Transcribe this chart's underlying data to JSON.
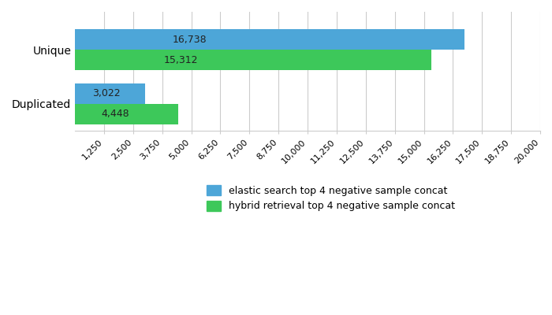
{
  "categories": [
    "Unique",
    "Duplicated"
  ],
  "series": [
    {
      "label": "elastic search top 4 negative sample concat",
      "values": [
        16738,
        3022
      ],
      "color": "#4da6d8"
    },
    {
      "label": "hybrid retrieval top 4 negative sample concat",
      "values": [
        15312,
        4448
      ],
      "color": "#3dc85a"
    }
  ],
  "xlim": [
    0,
    20000
  ],
  "xticks": [
    1250,
    2500,
    3750,
    5000,
    6250,
    7500,
    8750,
    10000,
    11250,
    12500,
    13750,
    15000,
    16250,
    17500,
    18750,
    20000
  ],
  "bar_height": 0.38,
  "bar_label_fontsize": 9,
  "tick_label_fontsize": 8,
  "legend_fontsize": 9,
  "background_color": "#ffffff",
  "grid_color": "#cccccc"
}
